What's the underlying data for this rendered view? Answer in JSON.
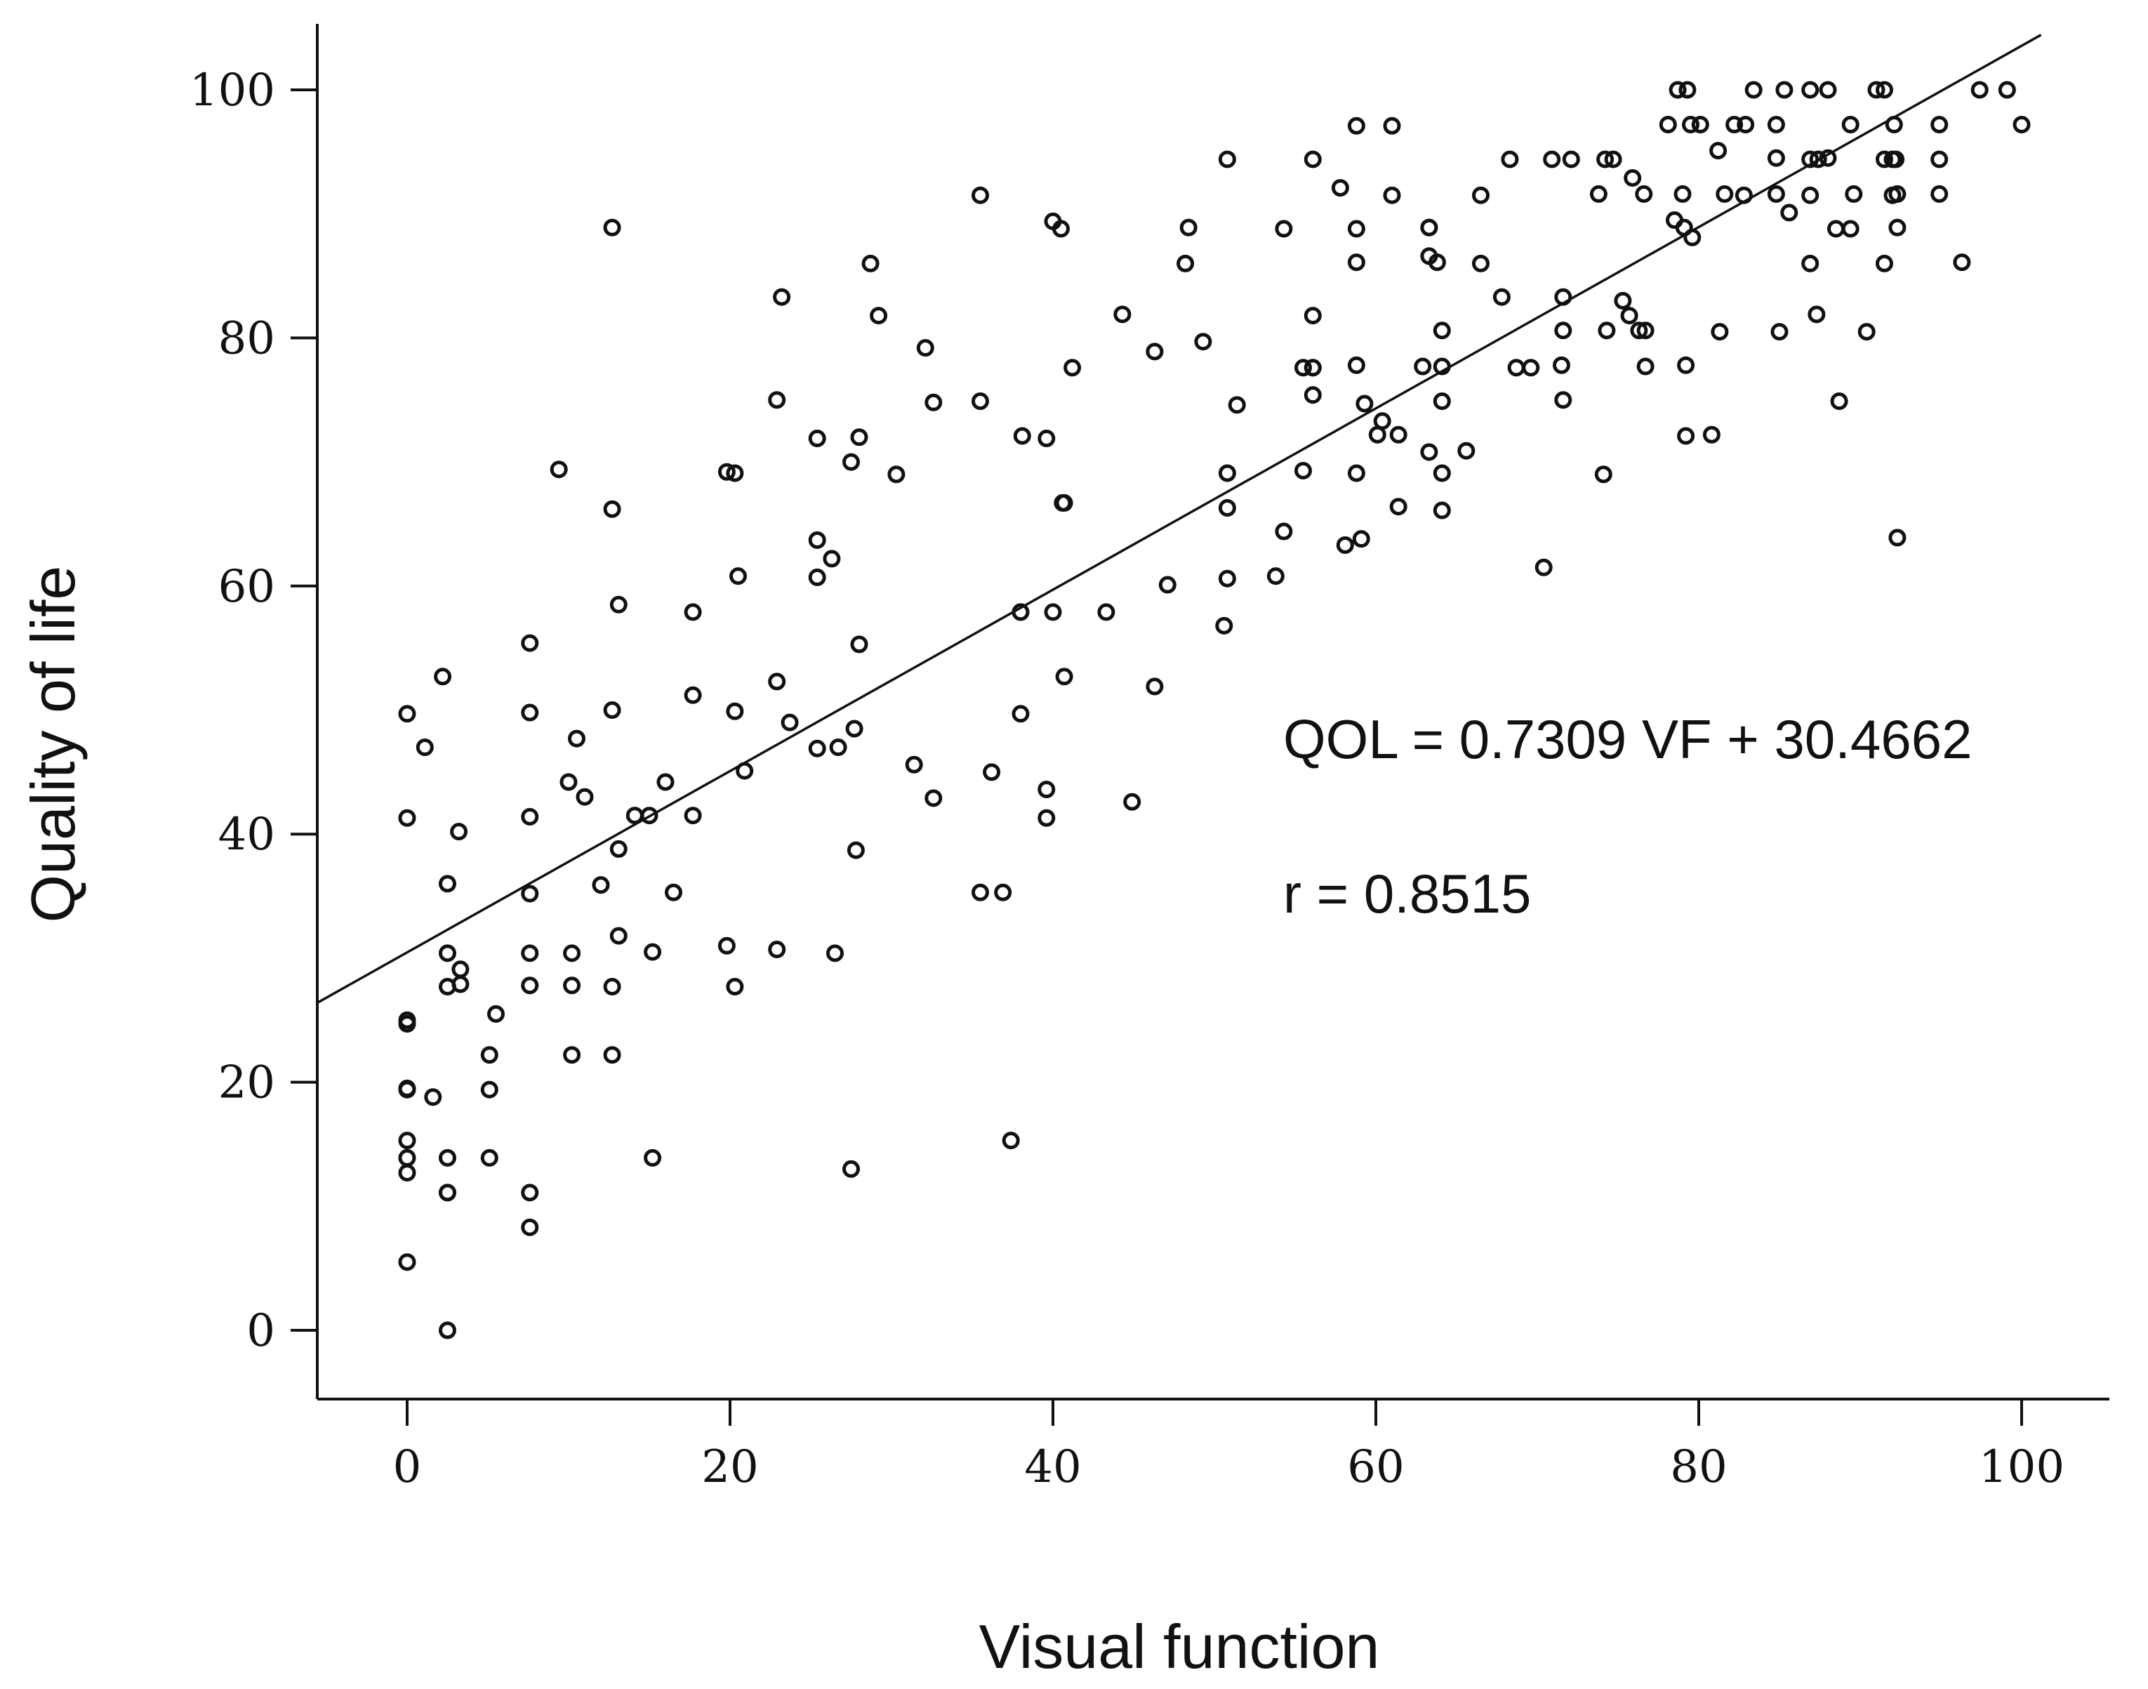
{
  "chart_data": {
    "type": "scatter",
    "xlabel": "Visual function",
    "ylabel": "Quality of life",
    "xlim": [
      -5.5,
      105.5
    ],
    "ylim": [
      -5.5,
      105.5
    ],
    "x_ticks": [
      0,
      20,
      40,
      60,
      80,
      100
    ],
    "y_ticks": [
      0,
      20,
      40,
      60,
      80,
      100
    ],
    "x_tick_labels": [
      "0",
      "20",
      "40",
      "60",
      "80",
      "100"
    ],
    "y_tick_labels": [
      "0",
      "20",
      "40",
      "60",
      "80",
      "100"
    ],
    "grid": false,
    "legend": "none",
    "annotations": [
      {
        "text": "QOL = 0.7309 VF + 30.4662",
        "x": 54,
        "y": 47.5
      },
      {
        "text": "r = 0.8515",
        "x": 54,
        "y": 35.2
      }
    ],
    "regression": {
      "slope": 0.7309,
      "intercept": 30.4662,
      "x_range": [
        -5.5,
        101.2
      ]
    },
    "points": [
      [
        0,
        49.7
      ],
      [
        0,
        41.3
      ],
      [
        0,
        25
      ],
      [
        0,
        24.7
      ],
      [
        0,
        19.5
      ],
      [
        0,
        19.4
      ],
      [
        0,
        15.3
      ],
      [
        0,
        13.9
      ],
      [
        0,
        12.7
      ],
      [
        0,
        5.5
      ],
      [
        1.1,
        47
      ],
      [
        1.6,
        18.8
      ],
      [
        2.2,
        52.7
      ],
      [
        2.5,
        36
      ],
      [
        2.5,
        30.4
      ],
      [
        2.5,
        27.7
      ],
      [
        2.5,
        13.9
      ],
      [
        2.5,
        11.1
      ],
      [
        2.5,
        11.1
      ],
      [
        2.5,
        0
      ],
      [
        3.2,
        40.2
      ],
      [
        3.3,
        29.1
      ],
      [
        3.3,
        27.9
      ],
      [
        5.1,
        22.2
      ],
      [
        5.1,
        19.4
      ],
      [
        5.1,
        13.9
      ],
      [
        5.5,
        25.5
      ],
      [
        7.6,
        55.4
      ],
      [
        7.6,
        49.8
      ],
      [
        7.6,
        41.4
      ],
      [
        7.6,
        35.2
      ],
      [
        7.6,
        30.4
      ],
      [
        7.6,
        27.8
      ],
      [
        7.6,
        11.1
      ],
      [
        7.6,
        8.3
      ],
      [
        9.4,
        69.4
      ],
      [
        10,
        44.2
      ],
      [
        10.2,
        30.4
      ],
      [
        10.2,
        27.8
      ],
      [
        10.2,
        22.2
      ],
      [
        10.5,
        47.7
      ],
      [
        11,
        43
      ],
      [
        12,
        35.9
      ],
      [
        12.7,
        88.9
      ],
      [
        12.7,
        66.2
      ],
      [
        12.7,
        50
      ],
      [
        12.7,
        27.7
      ],
      [
        12.7,
        22.2
      ],
      [
        13.1,
        58.5
      ],
      [
        13.1,
        38.8
      ],
      [
        13.1,
        31.8
      ],
      [
        14.1,
        41.5
      ],
      [
        15,
        41.5
      ],
      [
        15.2,
        30.5
      ],
      [
        15.2,
        13.9
      ],
      [
        16,
        44.2
      ],
      [
        16.5,
        35.3
      ],
      [
        17.7,
        57.9
      ],
      [
        17.7,
        51.2
      ],
      [
        17.7,
        41.5
      ],
      [
        19.8,
        69.2
      ],
      [
        19.8,
        31
      ],
      [
        20.3,
        69.1
      ],
      [
        20.3,
        49.9
      ],
      [
        20.3,
        27.7
      ],
      [
        20.5,
        60.8
      ],
      [
        20.9,
        45.1
      ],
      [
        22.9,
        75
      ],
      [
        22.9,
        52.3
      ],
      [
        22.9,
        30.7
      ],
      [
        23.2,
        83.3
      ],
      [
        23.7,
        49
      ],
      [
        25.4,
        71.9
      ],
      [
        25.4,
        63.7
      ],
      [
        25.4,
        60.7
      ],
      [
        25.4,
        46.9
      ],
      [
        26.3,
        62.2
      ],
      [
        26.5,
        30.4
      ],
      [
        26.7,
        47
      ],
      [
        27.5,
        70
      ],
      [
        27.5,
        13
      ],
      [
        27.7,
        48.5
      ],
      [
        27.8,
        38.7
      ],
      [
        28,
        72
      ],
      [
        28,
        55.3
      ],
      [
        28.7,
        86
      ],
      [
        29.2,
        81.8
      ],
      [
        30.3,
        69
      ],
      [
        31.4,
        45.6
      ],
      [
        32.1,
        79.2
      ],
      [
        32.6,
        74.8
      ],
      [
        32.6,
        42.9
      ],
      [
        35.5,
        91.5
      ],
      [
        35.5,
        74.9
      ],
      [
        35.5,
        35.3
      ],
      [
        36.2,
        45
      ],
      [
        36.9,
        35.3
      ],
      [
        37.4,
        15.3
      ],
      [
        38,
        57.9
      ],
      [
        38,
        57.9
      ],
      [
        38,
        49.7
      ],
      [
        38.1,
        72.1
      ],
      [
        39.6,
        71.9
      ],
      [
        39.6,
        43.6
      ],
      [
        39.6,
        41.3
      ],
      [
        40,
        89.4
      ],
      [
        40,
        57.9
      ],
      [
        40.5,
        88.8
      ],
      [
        40.6,
        66.7
      ],
      [
        40.7,
        66.7
      ],
      [
        40.7,
        52.7
      ],
      [
        41.2,
        77.6
      ],
      [
        43.3,
        57.9
      ],
      [
        44.3,
        81.9
      ],
      [
        44.9,
        42.6
      ],
      [
        46.3,
        78.9
      ],
      [
        46.3,
        51.9
      ],
      [
        47.1,
        60.1
      ],
      [
        48.2,
        86
      ],
      [
        48.4,
        88.9
      ],
      [
        49.3,
        79.7
      ],
      [
        50.6,
        56.8
      ],
      [
        50.8,
        94.4
      ],
      [
        50.8,
        69.1
      ],
      [
        50.8,
        66.3
      ],
      [
        50.8,
        60.6
      ],
      [
        51.4,
        74.6
      ],
      [
        53.8,
        60.8
      ],
      [
        54.3,
        88.8
      ],
      [
        54.3,
        64.4
      ],
      [
        55.5,
        77.6
      ],
      [
        55.5,
        69.3
      ],
      [
        56.1,
        94.4
      ],
      [
        56.1,
        81.8
      ],
      [
        56.1,
        77.6
      ],
      [
        56.1,
        77.6
      ],
      [
        56.1,
        75.4
      ],
      [
        57.8,
        92.1
      ],
      [
        58.1,
        63.3
      ],
      [
        58.8,
        97.1
      ],
      [
        58.8,
        88.8
      ],
      [
        58.8,
        86.1
      ],
      [
        58.8,
        77.8
      ],
      [
        58.8,
        69.1
      ],
      [
        59.1,
        63.8
      ],
      [
        59.3,
        74.7
      ],
      [
        60.1,
        72.2
      ],
      [
        60.4,
        73.3
      ],
      [
        61,
        97.1
      ],
      [
        61,
        91.5
      ],
      [
        61.4,
        72.2
      ],
      [
        61.4,
        66.4
      ],
      [
        62.9,
        77.7
      ],
      [
        63.3,
        88.9
      ],
      [
        63.3,
        88.9
      ],
      [
        63.3,
        86.6
      ],
      [
        63.3,
        70.8
      ],
      [
        63.8,
        86.1
      ],
      [
        64.1,
        80.6
      ],
      [
        64.1,
        77.7
      ],
      [
        64.1,
        74.9
      ],
      [
        64.1,
        69.1
      ],
      [
        64.1,
        66.1
      ],
      [
        65.6,
        70.9
      ],
      [
        66.5,
        91.5
      ],
      [
        66.5,
        86
      ],
      [
        67.8,
        83.3
      ],
      [
        68.3,
        94.4
      ],
      [
        68.7,
        77.6
      ],
      [
        69.6,
        77.6
      ],
      [
        70.4,
        61.5
      ],
      [
        70.9,
        94.4
      ],
      [
        71.5,
        77.8
      ],
      [
        71.6,
        83.3
      ],
      [
        71.6,
        80.6
      ],
      [
        71.6,
        75
      ],
      [
        72.1,
        94.4
      ],
      [
        73.8,
        91.6
      ],
      [
        74.1,
        69
      ],
      [
        74.2,
        94.4
      ],
      [
        74.3,
        80.6
      ],
      [
        74.7,
        94.4
      ],
      [
        75.3,
        83
      ],
      [
        75.7,
        81.8
      ],
      [
        75.9,
        92.9
      ],
      [
        76.3,
        80.6
      ],
      [
        76.6,
        91.6
      ],
      [
        76.7,
        80.6
      ],
      [
        76.7,
        77.7
      ],
      [
        78.1,
        97.2
      ],
      [
        78.5,
        89.5
      ],
      [
        78.7,
        100
      ],
      [
        79,
        91.6
      ],
      [
        79.1,
        88.9
      ],
      [
        79.2,
        77.8
      ],
      [
        79.2,
        72.1
      ],
      [
        79.3,
        100
      ],
      [
        79.5,
        97.2
      ],
      [
        79.6,
        88.1
      ],
      [
        80.1,
        97.2
      ],
      [
        80.8,
        72.2
      ],
      [
        81.2,
        95.1
      ],
      [
        81.3,
        80.5
      ],
      [
        81.6,
        91.6
      ],
      [
        82.2,
        97.2
      ],
      [
        82.8,
        91.5
      ],
      [
        82.9,
        97.2
      ],
      [
        83.4,
        100
      ],
      [
        84.8,
        97.2
      ],
      [
        84.8,
        94.5
      ],
      [
        84.8,
        91.6
      ],
      [
        85,
        80.5
      ],
      [
        85.3,
        100
      ],
      [
        85.6,
        90.1
      ],
      [
        86.9,
        100
      ],
      [
        86.9,
        94.4
      ],
      [
        86.9,
        91.5
      ],
      [
        86.9,
        86
      ],
      [
        87.3,
        81.9
      ],
      [
        87.4,
        94.4
      ],
      [
        88,
        100
      ],
      [
        88,
        94.5
      ],
      [
        88.5,
        88.8
      ],
      [
        88.7,
        74.9
      ],
      [
        89.4,
        97.2
      ],
      [
        89.4,
        88.8
      ],
      [
        89.6,
        91.6
      ],
      [
        90.4,
        80.5
      ],
      [
        91,
        100
      ],
      [
        91.5,
        100
      ],
      [
        91.5,
        94.4
      ],
      [
        91.5,
        86
      ],
      [
        92,
        94.4
      ],
      [
        92,
        91.5
      ],
      [
        92.1,
        97.2
      ],
      [
        92.2,
        94.4
      ],
      [
        92.3,
        91.6
      ],
      [
        92.3,
        88.9
      ],
      [
        92.3,
        63.9
      ],
      [
        94.9,
        97.2
      ],
      [
        94.9,
        94.4
      ],
      [
        94.9,
        91.6
      ],
      [
        96.3,
        86.1
      ],
      [
        97.4,
        100
      ],
      [
        99.1,
        100
      ],
      [
        100,
        97.2
      ]
    ]
  }
}
